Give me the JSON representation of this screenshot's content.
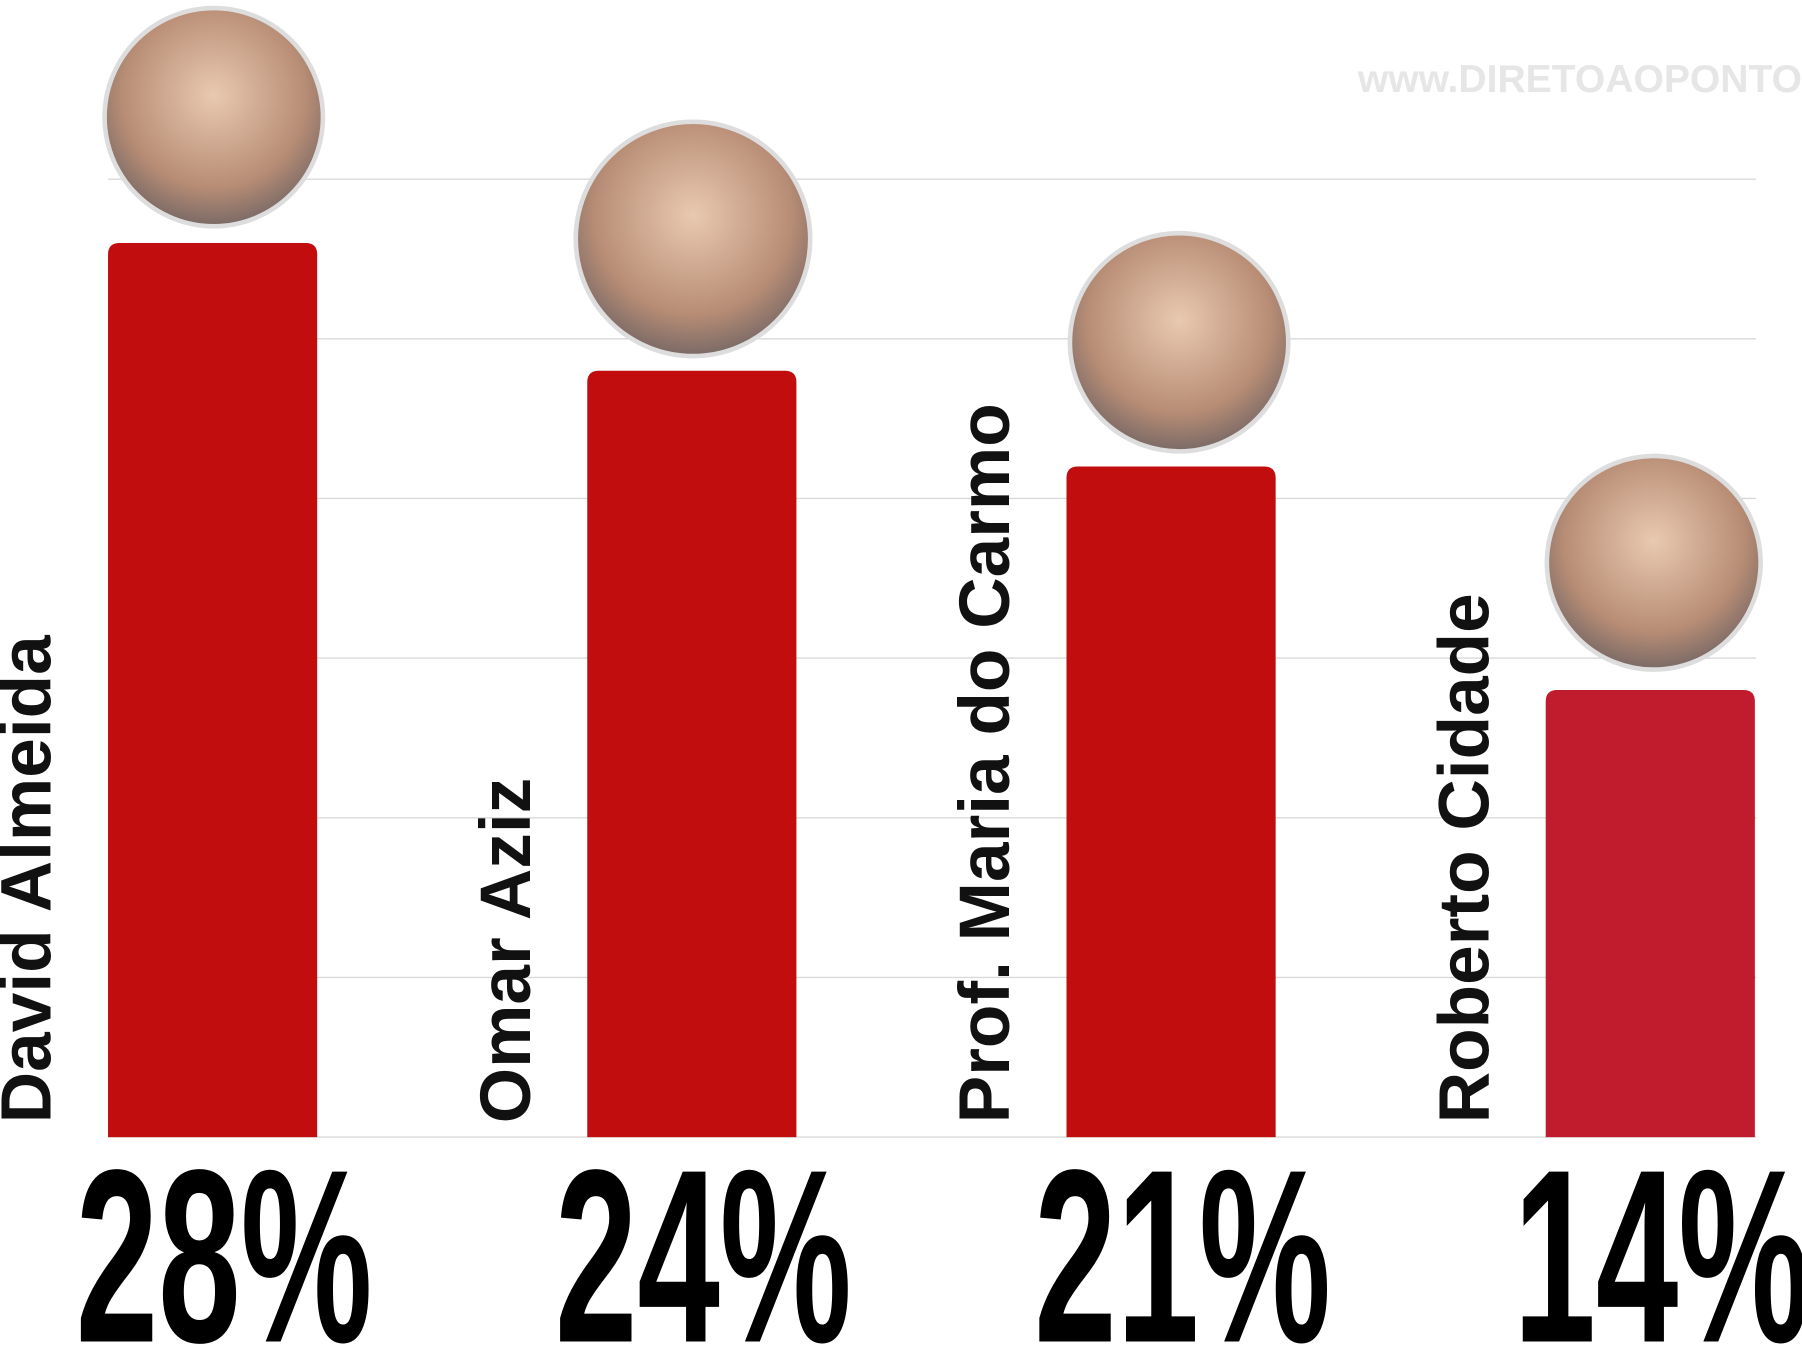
{
  "chart_data": {
    "type": "bar",
    "watermark": "www.DIRETOAOPONTO",
    "categories": [
      "David Almeida",
      "Omar Aziz",
      "Prof. Maria do Carmo",
      "Roberto Cidade"
    ],
    "values": [
      28,
      24,
      21,
      14
    ],
    "value_labels": [
      "28%",
      "24%",
      "21%",
      "14%"
    ],
    "colors": [
      "#c20d0e",
      "#c20d0e",
      "#c20d0e",
      "#c11c2d"
    ],
    "ylim": [
      0,
      30
    ],
    "yticks": [
      0,
      5,
      10,
      15,
      20,
      25,
      30
    ],
    "grid": true
  }
}
